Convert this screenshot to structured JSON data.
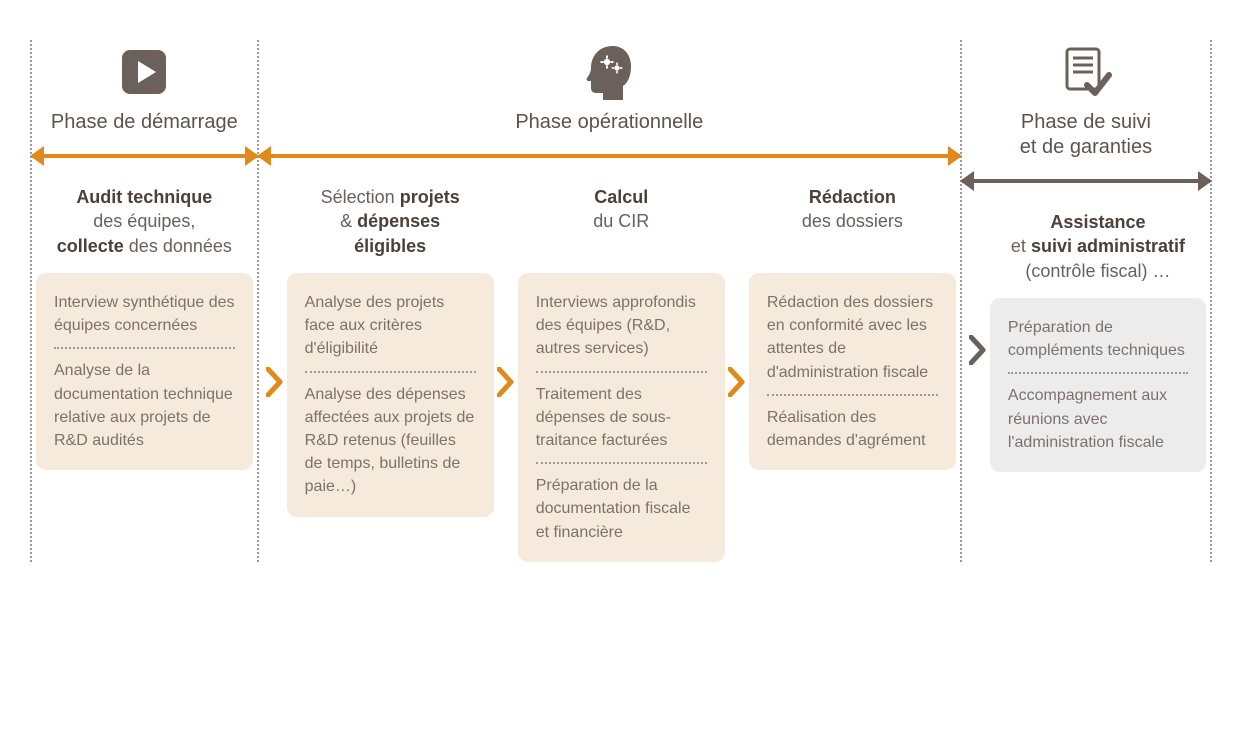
{
  "colors": {
    "orange": "#e08a1e",
    "brown": "#6b615a",
    "card_beige": "#f6eadd",
    "card_grey": "#ececec",
    "text": "#5e534b",
    "text_soft": "#7d726a"
  },
  "phases": [
    {
      "title": "Phase de démarrage",
      "icon": "play-icon",
      "arrow_color": "orange",
      "width": "w1",
      "steps": [
        {
          "title_html": "<b>Audit technique</b><br>des équipes,<br><b>collecte</b> des données",
          "card_color": "card_beige",
          "items": [
            "Interview synthétique des équipes concernées",
            "Analyse de la documentation technique relative aux projets de R&D audités"
          ]
        }
      ]
    },
    {
      "title": "Phase opérationnelle",
      "icon": "head-gears-icon",
      "arrow_color": "orange",
      "width": "w2",
      "steps": [
        {
          "title_html": "Sélection <b>projets</b><br>& <b>dépenses<br>éligibles</b>",
          "card_color": "card_beige",
          "items": [
            "Analyse des projets face aux critères d'éligibilité",
            "Analyse des dépenses affectées aux projets de R&D retenus (feuilles de temps, bulletins de paie…)"
          ]
        },
        {
          "title_html": "<b>Calcul</b><br>du CIR",
          "card_color": "card_beige",
          "items": [
            "Interviews approfondis des équipes (R&D, autres services)",
            "Traitement des dépenses de sous-traitance facturées",
            "Préparation de la documentation fiscale et financière"
          ]
        },
        {
          "title_html": "<b>Rédaction</b><br>des dossiers",
          "card_color": "card_beige",
          "items": [
            "Rédaction des dossiers en conformité avec les attentes de d'administration fiscale",
            "Réalisation des demandes d'agrément"
          ]
        }
      ]
    },
    {
      "title": "Phase de suivi\net de garanties",
      "icon": "doc-check-icon",
      "arrow_color": "brown",
      "width": "w3",
      "steps": [
        {
          "title_html": "<b>Assistance</b><br>et <b>suivi administratif</b><br>(contrôle fiscal) …",
          "card_color": "card_grey",
          "items": [
            "Préparation de compléments techniques",
            "Accompagnement aux réunions avec l'administration fiscale"
          ]
        }
      ]
    }
  ]
}
